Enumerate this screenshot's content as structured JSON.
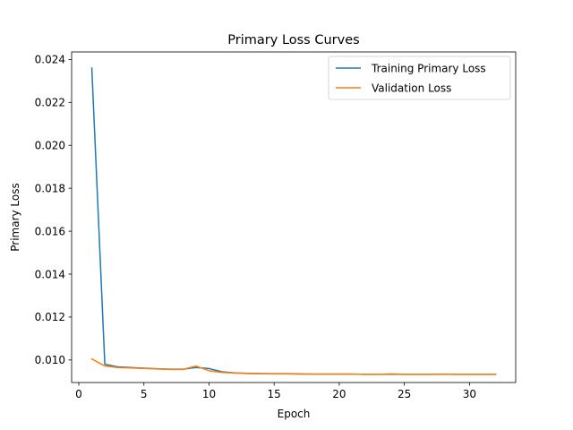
{
  "chart_data": {
    "type": "line",
    "title": "Primary Loss Curves",
    "xlabel": "Epoch",
    "ylabel": "Primary Loss",
    "xlim": [
      -0.55,
      33.55
    ],
    "ylim": [
      0.00895,
      0.02435
    ],
    "xticks": [
      0,
      5,
      10,
      15,
      20,
      25,
      30
    ],
    "xtick_labels": [
      "0",
      "5",
      "10",
      "15",
      "20",
      "25",
      "30"
    ],
    "yticks": [
      0.01,
      0.012,
      0.014,
      0.016,
      0.018,
      0.02,
      0.022,
      0.024
    ],
    "ytick_labels": [
      "0.010",
      "0.012",
      "0.014",
      "0.016",
      "0.018",
      "0.020",
      "0.022",
      "0.024"
    ],
    "grid": false,
    "legend_position": "top-right",
    "x": [
      1,
      2,
      3,
      4,
      5,
      6,
      7,
      8,
      9,
      10,
      11,
      12,
      13,
      14,
      15,
      16,
      17,
      18,
      19,
      20,
      21,
      22,
      23,
      24,
      25,
      26,
      27,
      28,
      29,
      30,
      31,
      32
    ],
    "series": [
      {
        "name": "Training Primary Loss",
        "color": "#1f77b4",
        "values": [
          0.0236,
          0.0098,
          0.00968,
          0.00965,
          0.00962,
          0.00959,
          0.00957,
          0.00957,
          0.00965,
          0.0096,
          0.00945,
          0.0094,
          0.00938,
          0.00937,
          0.00936,
          0.00936,
          0.00935,
          0.00934,
          0.00934,
          0.00934,
          0.00934,
          0.00933,
          0.00933,
          0.00933,
          0.00933,
          0.00933,
          0.00933,
          0.00933,
          0.00933,
          0.00933,
          0.00933,
          0.00933
        ]
      },
      {
        "name": "Validation Loss",
        "color": "#ff7f0e",
        "values": [
          0.01005,
          0.00972,
          0.00965,
          0.00963,
          0.0096,
          0.00958,
          0.00956,
          0.00956,
          0.00972,
          0.0095,
          0.00942,
          0.00939,
          0.00937,
          0.00936,
          0.00935,
          0.00935,
          0.00934,
          0.00934,
          0.00934,
          0.00934,
          0.00934,
          0.00933,
          0.00933,
          0.00935,
          0.00933,
          0.00933,
          0.00933,
          0.00934,
          0.00933,
          0.00933,
          0.00933,
          0.00933
        ]
      }
    ]
  }
}
